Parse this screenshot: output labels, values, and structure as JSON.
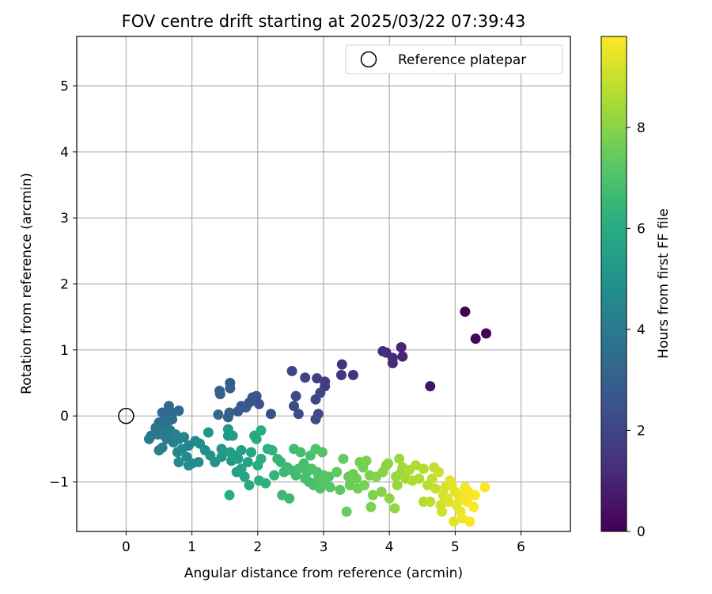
{
  "chart_data": {
    "type": "scatter",
    "title": "FOV centre drift starting at 2025/03/22 07:39:43",
    "xlabel": "Angular distance from reference (arcmin)",
    "ylabel": "Rotation from reference (arcmin)",
    "xlim": [
      -0.75,
      6.75
    ],
    "ylim": [
      -1.75,
      5.75
    ],
    "xticks": [
      0,
      1,
      2,
      3,
      4,
      5,
      6
    ],
    "yticks": [
      -1,
      0,
      1,
      2,
      3,
      4,
      5
    ],
    "grid": true,
    "legend": {
      "placement": "top-right",
      "entries": [
        "Reference platepar"
      ]
    },
    "reference_point": {
      "x": 0,
      "y": 0
    },
    "colorbar": {
      "label": "Hours from first FF file",
      "colormap": "viridis",
      "range": [
        0,
        9.8
      ],
      "ticks": [
        0,
        2,
        4,
        6,
        8
      ]
    },
    "series": [
      {
        "points": [
          [
            5.15,
            1.58,
            0.0
          ],
          [
            5.47,
            1.25,
            0.05
          ],
          [
            5.31,
            1.17,
            0.1
          ],
          [
            4.62,
            0.45,
            0.5
          ],
          [
            4.18,
            1.04,
            1.0
          ],
          [
            4.2,
            0.9,
            1.05
          ],
          [
            3.95,
            0.96,
            1.1
          ],
          [
            4.05,
            0.88,
            1.15
          ],
          [
            4.05,
            0.8,
            1.2
          ],
          [
            3.9,
            0.98,
            1.25
          ],
          [
            3.28,
            0.78,
            1.4
          ],
          [
            3.45,
            0.62,
            1.5
          ],
          [
            3.27,
            0.62,
            1.55
          ],
          [
            3.02,
            0.52,
            1.7
          ],
          [
            3.02,
            0.45,
            1.75
          ],
          [
            2.9,
            0.57,
            1.8
          ],
          [
            2.72,
            0.58,
            1.9
          ],
          [
            2.52,
            0.68,
            2.0
          ],
          [
            2.88,
            0.25,
            2.05
          ],
          [
            2.95,
            0.35,
            2.1
          ],
          [
            2.58,
            0.3,
            2.15
          ],
          [
            2.55,
            0.15,
            2.2
          ],
          [
            2.92,
            0.03,
            2.25
          ],
          [
            2.88,
            -0.05,
            2.3
          ],
          [
            2.62,
            0.03,
            2.35
          ],
          [
            2.2,
            0.03,
            2.4
          ],
          [
            2.02,
            0.18,
            2.45
          ],
          [
            1.98,
            0.3,
            2.5
          ],
          [
            1.92,
            0.28,
            2.55
          ],
          [
            1.87,
            0.2,
            2.6
          ],
          [
            1.82,
            0.13,
            2.65
          ],
          [
            1.75,
            0.15,
            2.7
          ],
          [
            1.7,
            0.07,
            2.8
          ],
          [
            1.58,
            0.5,
            2.85
          ],
          [
            1.58,
            0.42,
            2.9
          ],
          [
            1.42,
            0.38,
            2.95
          ],
          [
            1.43,
            0.33,
            3.0
          ],
          [
            1.57,
            0.05,
            3.05
          ],
          [
            1.55,
            -0.02,
            3.1
          ],
          [
            1.4,
            0.02,
            3.2
          ],
          [
            0.8,
            0.08,
            3.3
          ],
          [
            0.65,
            0.15,
            3.35
          ],
          [
            0.7,
            0.05,
            3.4
          ],
          [
            0.55,
            0.05,
            3.45
          ],
          [
            0.6,
            -0.02,
            3.5
          ],
          [
            0.7,
            -0.05,
            3.55
          ],
          [
            0.5,
            -0.1,
            3.6
          ],
          [
            0.62,
            -0.12,
            3.65
          ],
          [
            0.45,
            -0.18,
            3.7
          ],
          [
            0.55,
            -0.2,
            3.75
          ],
          [
            0.48,
            -0.28,
            3.8
          ],
          [
            0.38,
            -0.3,
            3.85
          ],
          [
            0.35,
            -0.35,
            3.9
          ],
          [
            0.58,
            -0.3,
            3.95
          ],
          [
            0.62,
            -0.35,
            4.0
          ],
          [
            0.67,
            -0.22,
            4.05
          ],
          [
            0.72,
            -0.4,
            4.1
          ],
          [
            0.55,
            -0.48,
            4.15
          ],
          [
            0.5,
            -0.52,
            4.2
          ],
          [
            0.75,
            -0.28,
            4.25
          ],
          [
            0.8,
            -0.35,
            4.3
          ],
          [
            0.88,
            -0.32,
            4.35
          ],
          [
            0.95,
            -0.45,
            4.4
          ],
          [
            1.05,
            -0.38,
            4.45
          ],
          [
            0.78,
            -0.55,
            4.5
          ],
          [
            0.85,
            -0.5,
            4.55
          ],
          [
            0.92,
            -0.62,
            4.6
          ],
          [
            0.8,
            -0.7,
            4.65
          ],
          [
            0.95,
            -0.75,
            4.7
          ],
          [
            1.0,
            -0.72,
            4.75
          ],
          [
            1.1,
            -0.7,
            4.8
          ],
          [
            1.12,
            -0.42,
            4.85
          ],
          [
            1.2,
            -0.52,
            4.9
          ],
          [
            1.28,
            -0.6,
            4.95
          ],
          [
            1.35,
            -0.7,
            5.0
          ],
          [
            1.25,
            -0.25,
            5.05
          ],
          [
            1.45,
            -0.5,
            5.1
          ],
          [
            1.45,
            -0.62,
            5.15
          ],
          [
            1.55,
            -0.2,
            5.2
          ],
          [
            1.55,
            -0.3,
            5.25
          ],
          [
            1.6,
            -0.68,
            5.3
          ],
          [
            1.62,
            -0.3,
            5.35
          ],
          [
            1.58,
            -0.55,
            5.4
          ],
          [
            1.65,
            -0.6,
            5.45
          ],
          [
            1.7,
            -0.65,
            5.5
          ],
          [
            1.75,
            -0.52,
            5.55
          ],
          [
            1.68,
            -0.85,
            5.6
          ],
          [
            1.75,
            -0.8,
            5.65
          ],
          [
            1.8,
            -0.92,
            5.7
          ],
          [
            1.85,
            -0.7,
            5.75
          ],
          [
            1.9,
            -0.55,
            5.8
          ],
          [
            1.95,
            -0.3,
            5.85
          ],
          [
            1.98,
            -0.35,
            5.9
          ],
          [
            1.87,
            -1.05,
            5.95
          ],
          [
            1.57,
            -1.2,
            6.0
          ],
          [
            2.0,
            -0.75,
            6.05
          ],
          [
            2.05,
            -0.65,
            6.1
          ],
          [
            2.05,
            -0.22,
            6.15
          ],
          [
            2.02,
            -0.98,
            6.2
          ],
          [
            2.12,
            -1.02,
            6.25
          ],
          [
            2.15,
            -0.5,
            6.3
          ],
          [
            2.22,
            -0.52,
            6.35
          ],
          [
            2.25,
            -0.9,
            6.4
          ],
          [
            2.3,
            -0.65,
            6.45
          ],
          [
            2.35,
            -0.7,
            6.5
          ],
          [
            2.4,
            -0.85,
            6.55
          ],
          [
            2.37,
            -1.2,
            6.6
          ],
          [
            2.45,
            -0.78,
            6.62
          ],
          [
            2.5,
            -0.82,
            6.65
          ],
          [
            2.48,
            -1.25,
            6.68
          ],
          [
            2.55,
            -0.5,
            6.7
          ],
          [
            2.58,
            -0.9,
            6.72
          ],
          [
            2.62,
            -0.8,
            6.75
          ],
          [
            2.65,
            -0.55,
            6.78
          ],
          [
            2.7,
            -0.72,
            6.8
          ],
          [
            2.72,
            -0.95,
            6.82
          ],
          [
            2.75,
            -0.85,
            6.85
          ],
          [
            2.78,
            -1.0,
            6.88
          ],
          [
            2.8,
            -0.6,
            6.9
          ],
          [
            2.82,
            -0.8,
            6.92
          ],
          [
            2.85,
            -1.05,
            6.95
          ],
          [
            2.88,
            -0.5,
            6.98
          ],
          [
            2.9,
            -0.85,
            7.0
          ],
          [
            2.92,
            -0.95,
            7.02
          ],
          [
            2.95,
            -1.1,
            7.05
          ],
          [
            2.98,
            -0.55,
            7.08
          ],
          [
            3.0,
            -0.9,
            7.1
          ],
          [
            3.02,
            -1.0,
            7.12
          ],
          [
            3.08,
            -0.92,
            7.15
          ],
          [
            3.1,
            -1.08,
            7.18
          ],
          [
            3.25,
            -1.12,
            7.3
          ],
          [
            3.2,
            -0.85,
            7.35
          ],
          [
            3.3,
            -0.65,
            7.4
          ],
          [
            3.35,
            -1.45,
            7.45
          ],
          [
            3.38,
            -0.92,
            7.5
          ],
          [
            3.4,
            -1.05,
            7.55
          ],
          [
            3.45,
            -0.88,
            7.6
          ],
          [
            3.5,
            -0.95,
            7.62
          ],
          [
            3.52,
            -1.1,
            7.65
          ],
          [
            3.55,
            -0.7,
            7.7
          ],
          [
            3.6,
            -0.78,
            7.72
          ],
          [
            3.62,
            -1.05,
            7.75
          ],
          [
            3.65,
            -0.68,
            7.78
          ],
          [
            3.7,
            -0.9,
            7.8
          ],
          [
            3.75,
            -1.2,
            7.85
          ],
          [
            3.72,
            -1.38,
            7.88
          ],
          [
            3.8,
            -0.92,
            7.9
          ],
          [
            3.88,
            -1.15,
            7.95
          ],
          [
            3.9,
            -0.85,
            8.0
          ],
          [
            3.95,
            -0.75,
            8.02
          ],
          [
            3.98,
            -0.72,
            8.05
          ],
          [
            4.0,
            -1.25,
            8.1
          ],
          [
            4.08,
            -1.4,
            8.15
          ],
          [
            4.1,
            -0.92,
            8.2
          ],
          [
            4.12,
            -1.05,
            8.25
          ],
          [
            4.15,
            -0.65,
            8.3
          ],
          [
            4.18,
            -0.85,
            8.35
          ],
          [
            4.2,
            -0.78,
            8.4
          ],
          [
            4.25,
            -0.95,
            8.45
          ],
          [
            4.3,
            -0.82,
            8.5
          ],
          [
            4.35,
            -0.98,
            8.55
          ],
          [
            4.4,
            -0.75,
            8.6
          ],
          [
            4.45,
            -0.95,
            8.62
          ],
          [
            4.52,
            -0.8,
            8.65
          ],
          [
            4.52,
            -1.3,
            8.7
          ],
          [
            4.58,
            -1.05,
            8.75
          ],
          [
            4.62,
            -1.3,
            8.8
          ],
          [
            4.65,
            -0.95,
            8.85
          ],
          [
            4.68,
            -0.78,
            8.9
          ],
          [
            4.7,
            -1.1,
            8.95
          ],
          [
            4.75,
            -0.85,
            9.0
          ],
          [
            4.78,
            -1.35,
            9.05
          ],
          [
            4.8,
            -1.45,
            9.1
          ],
          [
            4.82,
            -1.2,
            9.15
          ],
          [
            4.85,
            -1.08,
            9.2
          ],
          [
            4.88,
            -1.25,
            9.25
          ],
          [
            4.9,
            -1.3,
            9.3
          ],
          [
            4.92,
            -0.98,
            9.35
          ],
          [
            4.95,
            -1.05,
            9.38
          ],
          [
            4.98,
            -1.6,
            9.4
          ],
          [
            5.0,
            -1.15,
            9.45
          ],
          [
            5.02,
            -1.35,
            9.48
          ],
          [
            5.05,
            -1.2,
            9.5
          ],
          [
            5.08,
            -1.45,
            9.55
          ],
          [
            5.1,
            -1.55,
            9.6
          ],
          [
            5.12,
            -1.25,
            9.62
          ],
          [
            5.15,
            -1.08,
            9.65
          ],
          [
            5.18,
            -1.3,
            9.68
          ],
          [
            5.2,
            -1.15,
            9.7
          ],
          [
            5.22,
            -1.6,
            9.72
          ],
          [
            5.28,
            -1.38,
            9.75
          ],
          [
            5.3,
            -1.2,
            9.78
          ],
          [
            5.45,
            -1.08,
            9.8
          ]
        ]
      }
    ]
  }
}
